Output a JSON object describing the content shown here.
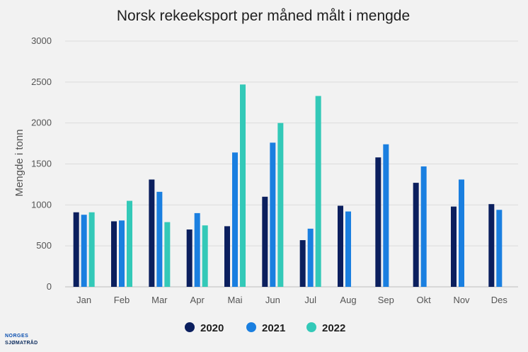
{
  "chart_data": {
    "type": "bar",
    "title": "Norsk rekeeksport per måned målt i mengde",
    "ylabel": "Mengde i tonn",
    "xlabel": "",
    "ylim": [
      0,
      3000
    ],
    "yticks": [
      0,
      500,
      1000,
      1500,
      2000,
      2500,
      3000
    ],
    "grid": true,
    "legend_position": "bottom",
    "categories": [
      "Jan",
      "Feb",
      "Mar",
      "Apr",
      "Mai",
      "Jun",
      "Jul",
      "Aug",
      "Sep",
      "Okt",
      "Nov",
      "Des"
    ],
    "series": [
      {
        "name": "2020",
        "color": "#0b1f5e",
        "values": [
          910,
          800,
          1310,
          700,
          740,
          1100,
          570,
          990,
          1580,
          1270,
          980,
          1010
        ]
      },
      {
        "name": "2021",
        "color": "#1a7fe0",
        "values": [
          880,
          810,
          1160,
          900,
          1640,
          1760,
          710,
          920,
          1740,
          1470,
          1310,
          940
        ]
      },
      {
        "name": "2022",
        "color": "#33c9b8",
        "values": [
          910,
          1050,
          790,
          750,
          2470,
          2000,
          2330,
          null,
          null,
          null,
          null,
          null
        ]
      }
    ]
  },
  "logo": {
    "line1": "NORGES",
    "line2": "SJØMATRÅD"
  }
}
